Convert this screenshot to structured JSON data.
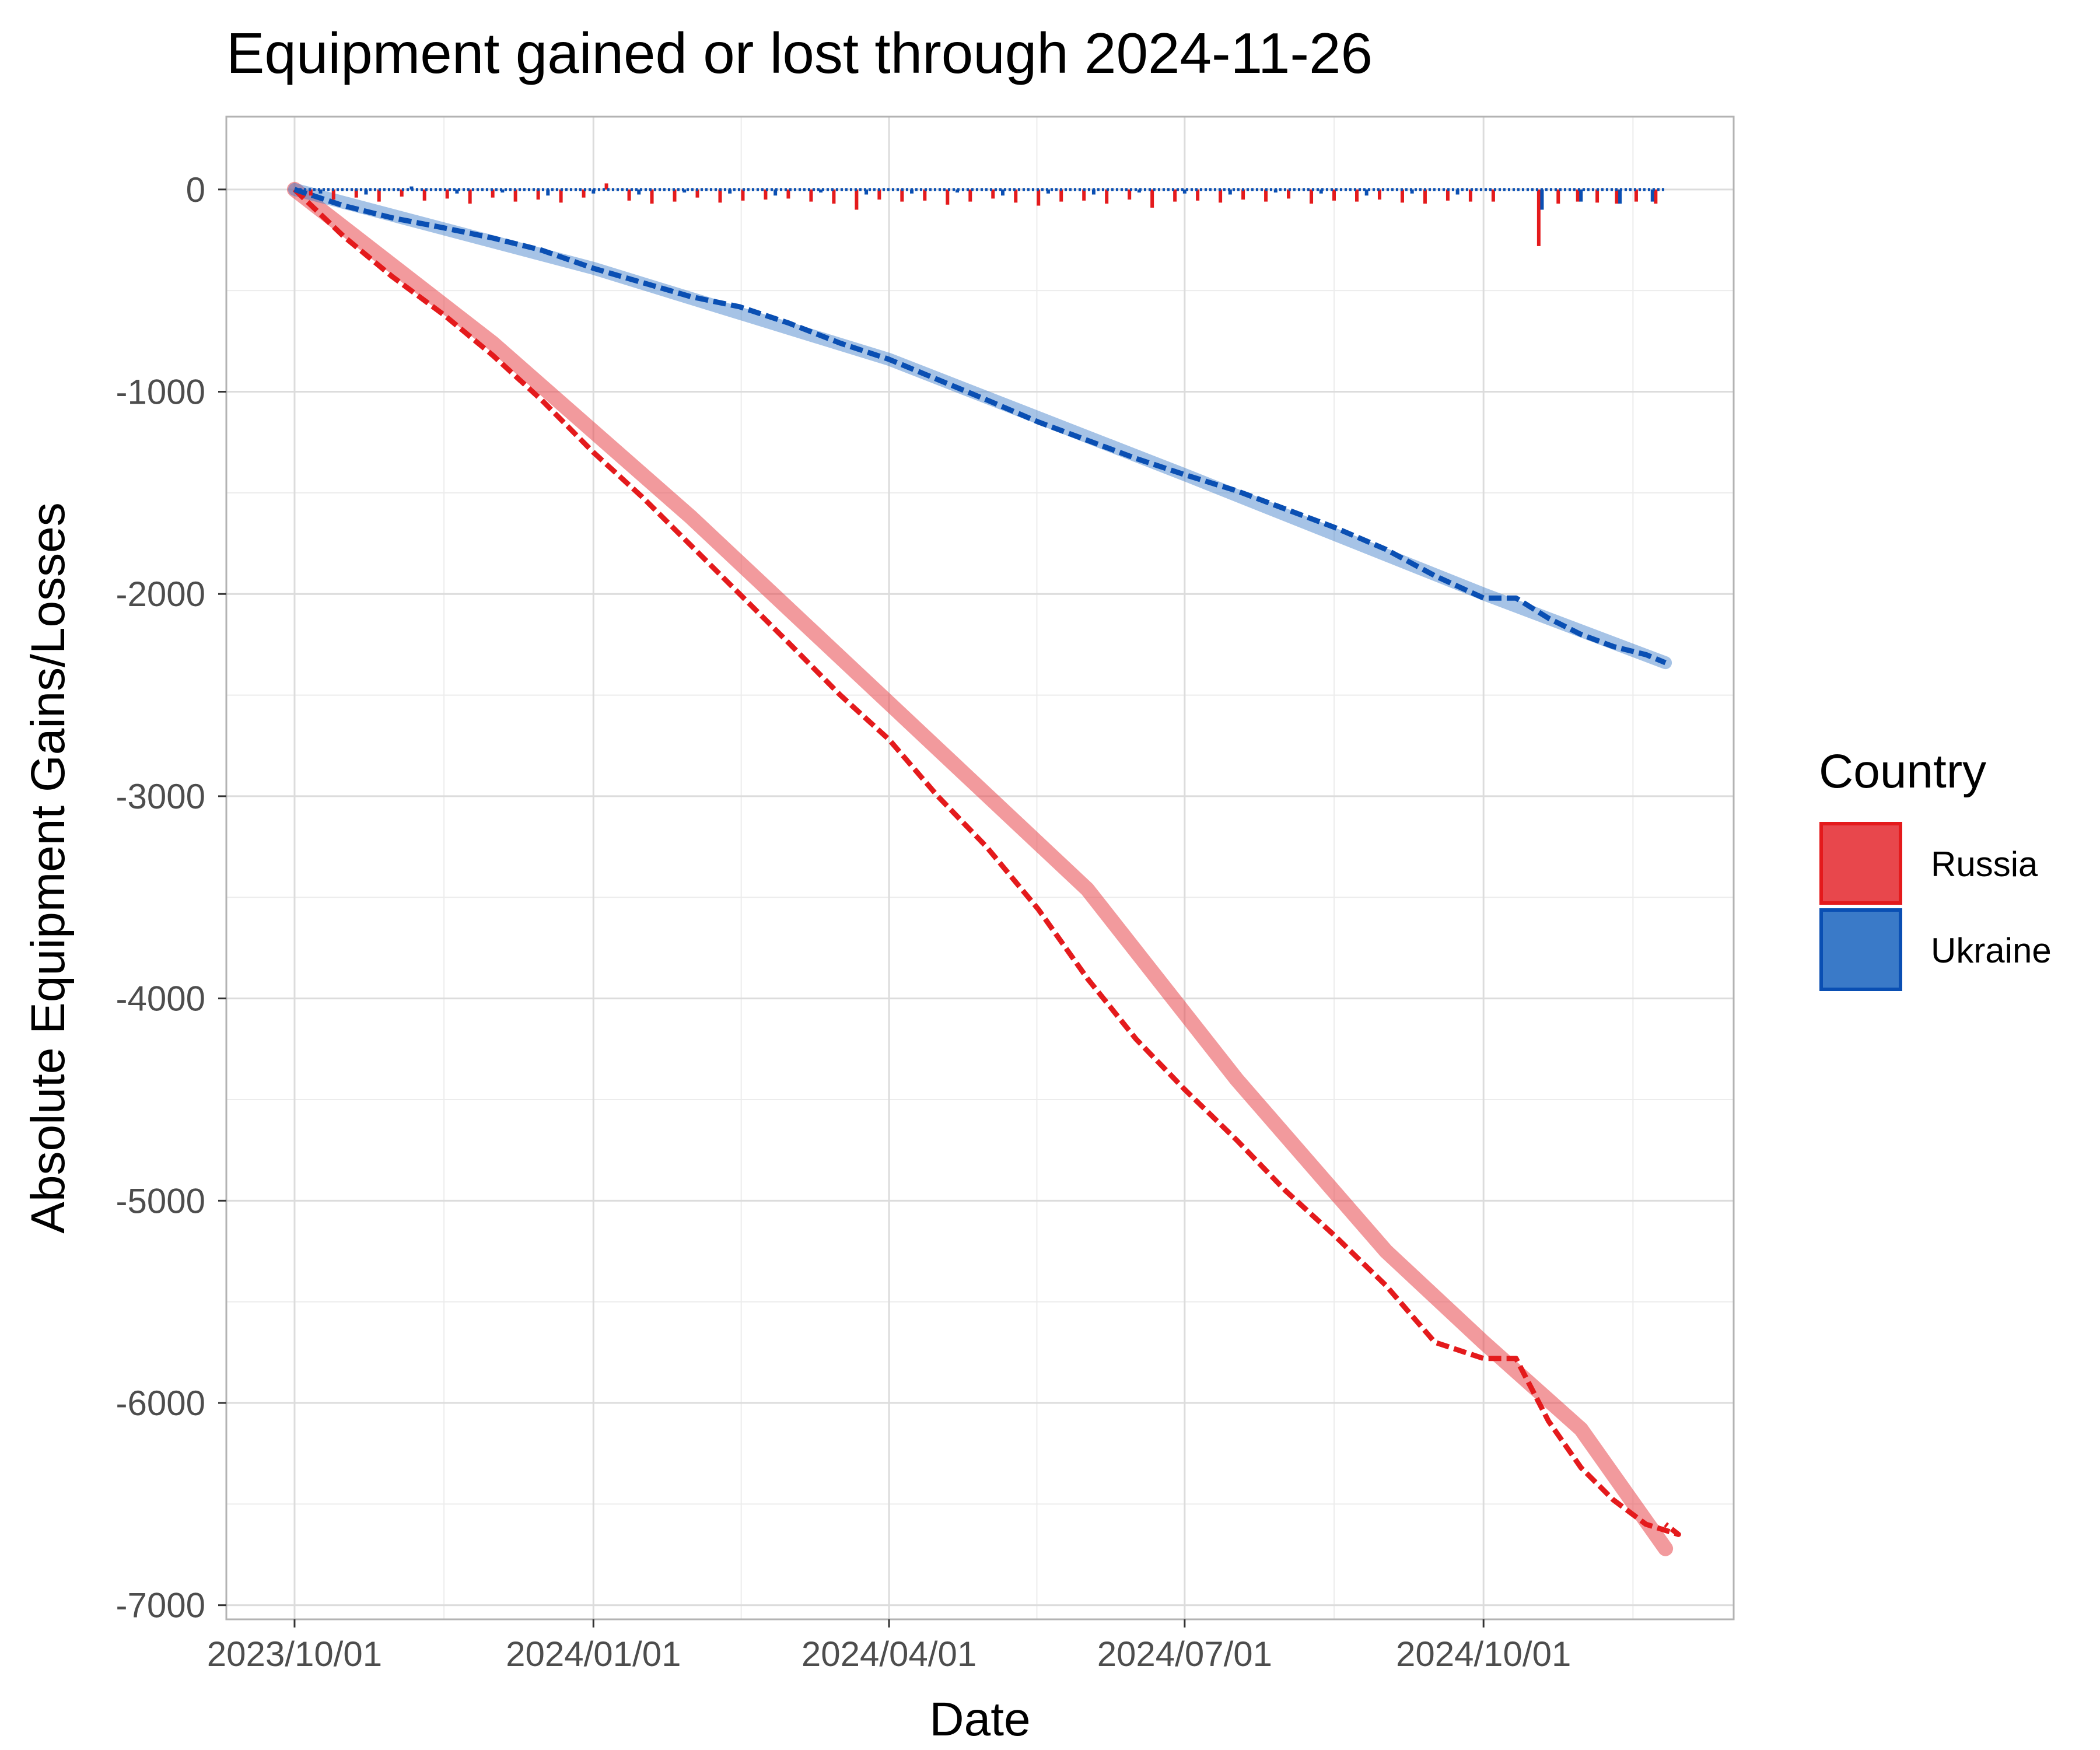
{
  "colors": {
    "Russia": "#e41a1c",
    "Ukraine": "#0a4fb3",
    "Russia_fill": "#e8474c",
    "Ukraine_fill": "#3a7ac8",
    "grid_major": "#dcdcdc",
    "grid_minor": "#ececec",
    "panel_border": "#b3b3b3"
  },
  "chart_data": {
    "type": "line",
    "title": "Equipment gained or lost through 2024-11-26",
    "xlabel": "Date",
    "ylabel": "Absolute Equipment Gains/Losses",
    "x_ticks": [
      "2023/10/01",
      "2024/01/01",
      "2024/04/01",
      "2024/07/01",
      "2024/10/01"
    ],
    "x_tick_days": [
      0,
      92,
      183,
      274,
      366
    ],
    "x_range_days": [
      -21,
      443
    ],
    "y_ticks": [
      0,
      -1000,
      -2000,
      -3000,
      -4000,
      -5000,
      -6000,
      -7000
    ],
    "y_tick_labels": [
      "0",
      "-1000",
      "-2000",
      "-3000",
      "-4000",
      "-5000",
      "-6000",
      "-7000"
    ],
    "ylim": [
      -7070,
      360
    ],
    "grid": true,
    "legend": {
      "title": "Country",
      "position": "right",
      "entries": [
        "Russia",
        "Ukraine"
      ]
    },
    "series": [
      {
        "name": "Russia",
        "kind": "cumulative",
        "x_days": [
          0,
          15,
          30,
          46,
          61,
          76,
          92,
          107,
          122,
          137,
          152,
          168,
          183,
          198,
          213,
          229,
          244,
          259,
          274,
          290,
          305,
          320,
          336,
          351,
          366,
          376,
          386,
          396,
          406,
          416,
          426,
          422
        ],
        "values": [
          0,
          -230,
          -430,
          -620,
          -820,
          -1040,
          -1300,
          -1520,
          -1760,
          -2000,
          -2240,
          -2500,
          -2720,
          -3000,
          -3250,
          -3560,
          -3900,
          -4200,
          -4450,
          -4700,
          -4950,
          -5170,
          -5420,
          -5700,
          -5780,
          -5780,
          -6090,
          -6320,
          -6480,
          -6600,
          -6650,
          -6600
        ]
      },
      {
        "name": "Ukraine",
        "kind": "cumulative",
        "x_days": [
          0,
          15,
          30,
          46,
          61,
          76,
          92,
          107,
          122,
          137,
          152,
          168,
          183,
          198,
          213,
          229,
          244,
          259,
          274,
          290,
          305,
          320,
          336,
          351,
          366,
          376,
          386,
          396,
          406,
          416,
          422
        ],
        "values": [
          0,
          -80,
          -140,
          -190,
          -240,
          -300,
          -390,
          -460,
          -530,
          -580,
          -660,
          -760,
          -840,
          -940,
          -1040,
          -1150,
          -1240,
          -1330,
          -1410,
          -1490,
          -1580,
          -1670,
          -1780,
          -1910,
          -2020,
          -2020,
          -2120,
          -2200,
          -2260,
          -2300,
          -2340
        ]
      },
      {
        "name": "Russia",
        "kind": "daily",
        "x_days": [
          5,
          12,
          19,
          26,
          33,
          40,
          47,
          54,
          61,
          68,
          75,
          82,
          89,
          96,
          103,
          110,
          117,
          124,
          131,
          138,
          145,
          152,
          159,
          166,
          173,
          180,
          187,
          194,
          201,
          208,
          215,
          222,
          229,
          236,
          243,
          250,
          257,
          264,
          271,
          278,
          285,
          292,
          299,
          306,
          313,
          320,
          327,
          334,
          341,
          348,
          355,
          362,
          369,
          383,
          389,
          395,
          401,
          407,
          413,
          419
        ],
        "values": [
          -30,
          -50,
          -40,
          -60,
          -35,
          -55,
          -45,
          -70,
          -40,
          -60,
          -50,
          -65,
          -40,
          30,
          -55,
          -70,
          -60,
          -40,
          -65,
          -55,
          -50,
          -45,
          -60,
          -70,
          -100,
          -50,
          -60,
          -55,
          -75,
          -60,
          -45,
          -65,
          -80,
          -60,
          -55,
          -70,
          -50,
          -90,
          -60,
          -55,
          -65,
          -50,
          -60,
          -45,
          -70,
          -55,
          -60,
          -50,
          -65,
          -70,
          -55,
          -60,
          -60,
          -280,
          -70,
          -60,
          -65,
          -70,
          -60,
          -70
        ]
      },
      {
        "name": "Ukraine",
        "kind": "daily",
        "x_days": [
          8,
          22,
          36,
          50,
          64,
          78,
          92,
          106,
          120,
          134,
          148,
          162,
          176,
          190,
          204,
          218,
          232,
          246,
          260,
          274,
          288,
          302,
          316,
          330,
          344,
          358,
          384,
          396,
          408,
          418
        ],
        "values": [
          -20,
          -25,
          15,
          -20,
          -15,
          -30,
          -20,
          -25,
          -15,
          -20,
          -30,
          -15,
          -25,
          -20,
          -15,
          -30,
          -20,
          -25,
          -15,
          -20,
          -25,
          -15,
          -20,
          -30,
          -20,
          -25,
          -100,
          -60,
          -70,
          -60
        ]
      }
    ]
  }
}
